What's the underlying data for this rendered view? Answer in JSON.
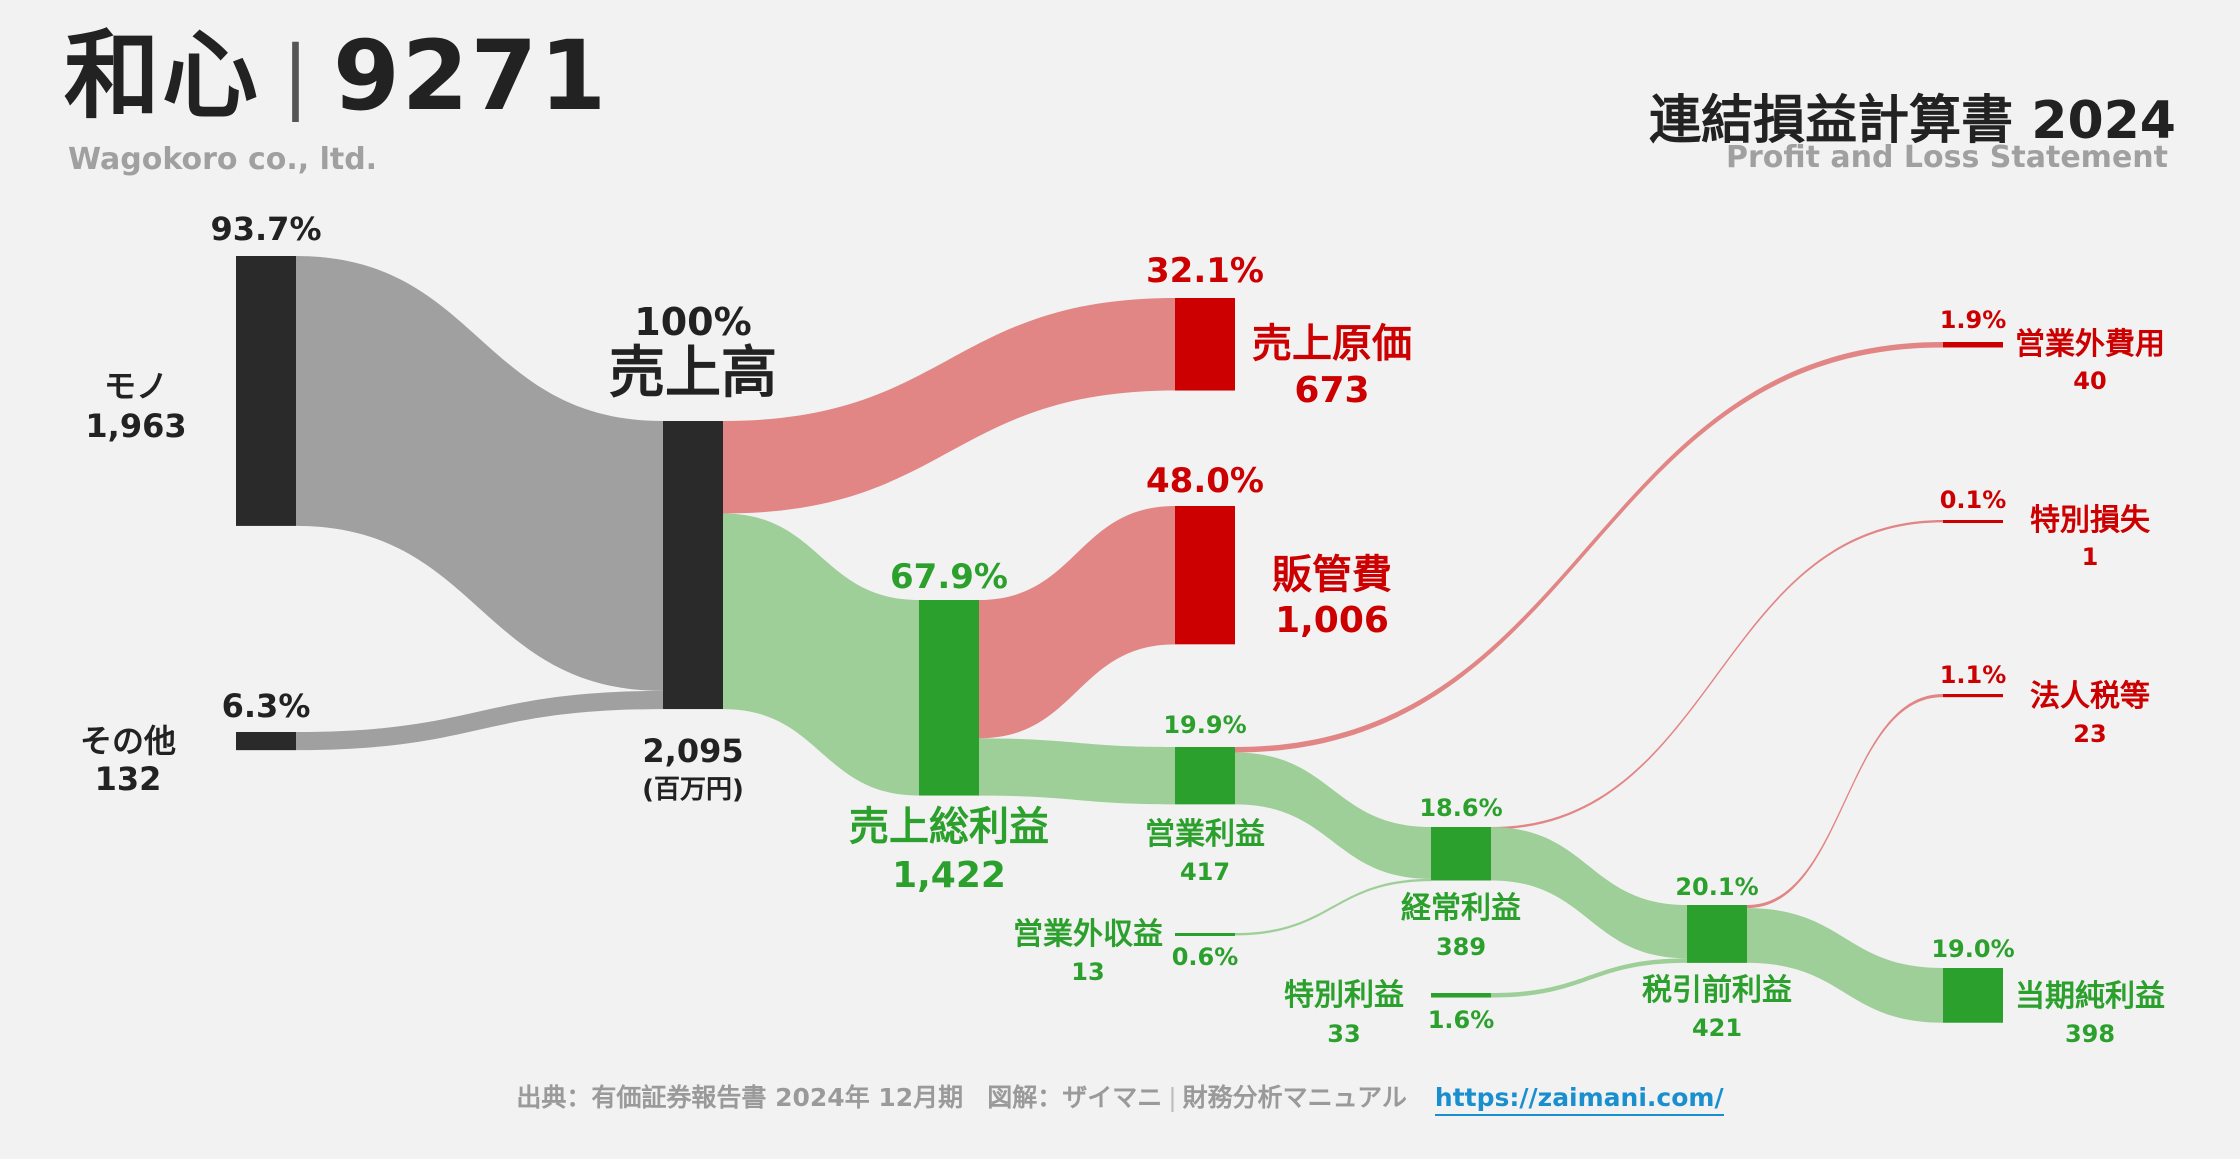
{
  "header": {
    "company_jp": "和心",
    "ticker": "9271",
    "company_en": "Wagokoro co., ltd.",
    "statement_title": "連結損益計算書 2024",
    "statement_subtitle": "Profit and Loss Statement"
  },
  "footer": {
    "source": "出典：有価証券報告書 2024年 12月期",
    "credit": "図解：ザイマニ",
    "site_name": "財務分析マニュアル",
    "url": "https://zaimani.com/"
  },
  "colors": {
    "neutral_node": "#2a2a2a",
    "neutral_flow": "#a0a0a0",
    "cost_node": "#cc0000",
    "cost_flow": "#e28585",
    "profit_node": "#2ca02c",
    "profit_flow": "#9ecf99",
    "cost_text": "#cc0000",
    "profit_text": "#2ca02c",
    "neutral_text": "#222222"
  },
  "chart_data": {
    "type": "sankey",
    "unit": "(百万円)",
    "nodes": [
      {
        "id": "mono",
        "label": "モノ",
        "value": 1963,
        "value_text": "1,963",
        "pct": "93.7%",
        "kind": "neutral"
      },
      {
        "id": "sonota",
        "label": "その他",
        "value": 132,
        "value_text": "132",
        "pct": "6.3%",
        "kind": "neutral"
      },
      {
        "id": "uriage",
        "label": "売上高",
        "value": 2095,
        "value_text": "2,095",
        "pct": "100%",
        "kind": "neutral"
      },
      {
        "id": "genka",
        "label": "売上原価",
        "value": 673,
        "value_text": "673",
        "pct": "32.1%",
        "kind": "cost"
      },
      {
        "id": "sourieki",
        "label": "売上総利益",
        "value": 1422,
        "value_text": "1,422",
        "pct": "67.9%",
        "kind": "profit"
      },
      {
        "id": "hankan",
        "label": "販管費",
        "value": 1006,
        "value_text": "1,006",
        "pct": "48.0%",
        "kind": "cost"
      },
      {
        "id": "eigyo",
        "label": "営業利益",
        "value": 417,
        "value_text": "417",
        "pct": "19.9%",
        "kind": "profit"
      },
      {
        "id": "eigyogai_shueki",
        "label": "営業外収益",
        "value": 13,
        "value_text": "13",
        "pct": "0.6%",
        "kind": "profit"
      },
      {
        "id": "eigyogai_hiyo",
        "label": "営業外費用",
        "value": 40,
        "value_text": "40",
        "pct": "1.9%",
        "kind": "cost"
      },
      {
        "id": "keijo",
        "label": "経常利益",
        "value": 389,
        "value_text": "389",
        "pct": "18.6%",
        "kind": "profit"
      },
      {
        "id": "tokubetsu_rieki",
        "label": "特別利益",
        "value": 33,
        "value_text": "33",
        "pct": "1.6%",
        "kind": "profit"
      },
      {
        "id": "tokubetsu_sonshitsu",
        "label": "特別損失",
        "value": 1,
        "value_text": "1",
        "pct": "0.1%",
        "kind": "cost"
      },
      {
        "id": "zeibikimae",
        "label": "税引前利益",
        "value": 421,
        "value_text": "421",
        "pct": "20.1%",
        "kind": "profit"
      },
      {
        "id": "hojinzei",
        "label": "法人税等",
        "value": 23,
        "value_text": "23",
        "pct": "1.1%",
        "kind": "cost"
      },
      {
        "id": "junrieki",
        "label": "当期純利益",
        "value": 398,
        "value_text": "398",
        "pct": "19.0%",
        "kind": "profit"
      }
    ],
    "links": [
      {
        "source": "mono",
        "target": "uriage",
        "value": 1963
      },
      {
        "source": "sonota",
        "target": "uriage",
        "value": 132
      },
      {
        "source": "uriage",
        "target": "genka",
        "value": 673
      },
      {
        "source": "uriage",
        "target": "sourieki",
        "value": 1422
      },
      {
        "source": "sourieki",
        "target": "hankan",
        "value": 1006
      },
      {
        "source": "sourieki",
        "target": "eigyo",
        "value": 417
      },
      {
        "source": "eigyo",
        "target": "eigyogai_hiyo",
        "value": 40
      },
      {
        "source": "eigyo",
        "target": "keijo",
        "value": 377
      },
      {
        "source": "eigyogai_shueki",
        "target": "keijo",
        "value": 13
      },
      {
        "source": "keijo",
        "target": "tokubetsu_sonshitsu",
        "value": 1
      },
      {
        "source": "keijo",
        "target": "zeibikimae",
        "value": 388
      },
      {
        "source": "tokubetsu_rieki",
        "target": "zeibikimae",
        "value": 33
      },
      {
        "source": "zeibikimae",
        "target": "hojinzei",
        "value": 23
      },
      {
        "source": "zeibikimae",
        "target": "junrieki",
        "value": 398
      }
    ]
  }
}
